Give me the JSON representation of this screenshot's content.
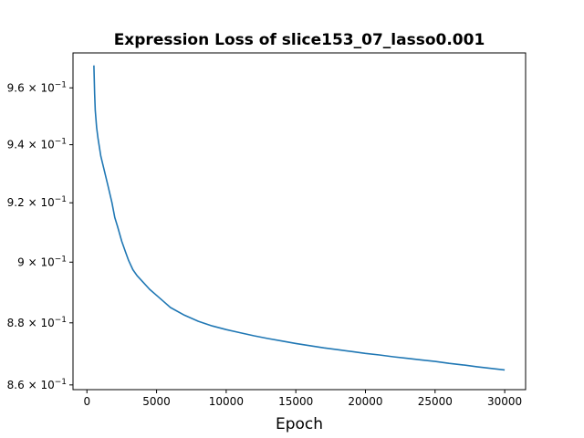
{
  "chart_data": {
    "type": "line",
    "title": "Expression Loss of slice153_07_lasso0.001",
    "xlabel": "Epoch",
    "ylabel": "",
    "y_scale": "log",
    "grid": false,
    "legend": "none",
    "xlim": [
      -1000,
      31500
    ],
    "ylim": [
      0.8585,
      0.9725
    ],
    "x_ticks": [
      0,
      5000,
      10000,
      15000,
      20000,
      25000,
      30000
    ],
    "x_tick_labels": [
      "0",
      "5000",
      "10000",
      "15000",
      "20000",
      "25000",
      "30000"
    ],
    "y_ticks": [
      {
        "value": 0.86,
        "base": "8.6 × 10",
        "exp": "−1"
      },
      {
        "value": 0.88,
        "base": "8.8 × 10",
        "exp": "−1"
      },
      {
        "value": 0.9,
        "base": "9 × 10",
        "exp": "−1"
      },
      {
        "value": 0.92,
        "base": "9.2 × 10",
        "exp": "−1"
      },
      {
        "value": 0.94,
        "base": "9.4 × 10",
        "exp": "−1"
      },
      {
        "value": 0.96,
        "base": "9.6 × 10",
        "exp": "−1"
      }
    ],
    "series": [
      {
        "color": "#1f77b4",
        "x": [
          500,
          550,
          600,
          700,
          800,
          1000,
          1200,
          1500,
          1800,
          2000,
          2200,
          2500,
          2800,
          3000,
          3300,
          3600,
          4000,
          4500,
          5000,
          5500,
          6000,
          7000,
          8000,
          9000,
          10000,
          11000,
          12000,
          13000,
          14000,
          15000,
          16000,
          17000,
          18000,
          19000,
          20000,
          21000,
          22000,
          23000,
          24000,
          25000,
          26000,
          27000,
          28000,
          29000,
          30000
        ],
        "y": [
          0.968,
          0.958,
          0.952,
          0.946,
          0.942,
          0.936,
          0.932,
          0.926,
          0.92,
          0.915,
          0.912,
          0.907,
          0.903,
          0.9005,
          0.8975,
          0.8955,
          0.8935,
          0.891,
          0.889,
          0.887,
          0.885,
          0.8825,
          0.8805,
          0.879,
          0.8778,
          0.8768,
          0.8758,
          0.8749,
          0.8741,
          0.8733,
          0.8726,
          0.8719,
          0.8713,
          0.8707,
          0.8701,
          0.8696,
          0.869,
          0.8685,
          0.868,
          0.8675,
          0.8669,
          0.8664,
          0.8658,
          0.8653,
          0.8648
        ]
      }
    ]
  }
}
